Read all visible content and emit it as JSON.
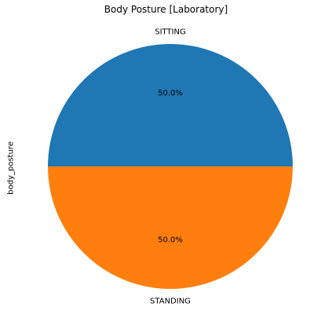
{
  "chart_data": {
    "type": "pie",
    "title": "Body Posture [Laboratory]",
    "ylabel": "body_posture",
    "slices": [
      {
        "label": "SITTING",
        "value": 50.0,
        "pct_label": "50.0%",
        "color": "#1f77b4"
      },
      {
        "label": "STANDING",
        "value": 50.0,
        "pct_label": "50.0%",
        "color": "#ff7f0e"
      }
    ]
  }
}
